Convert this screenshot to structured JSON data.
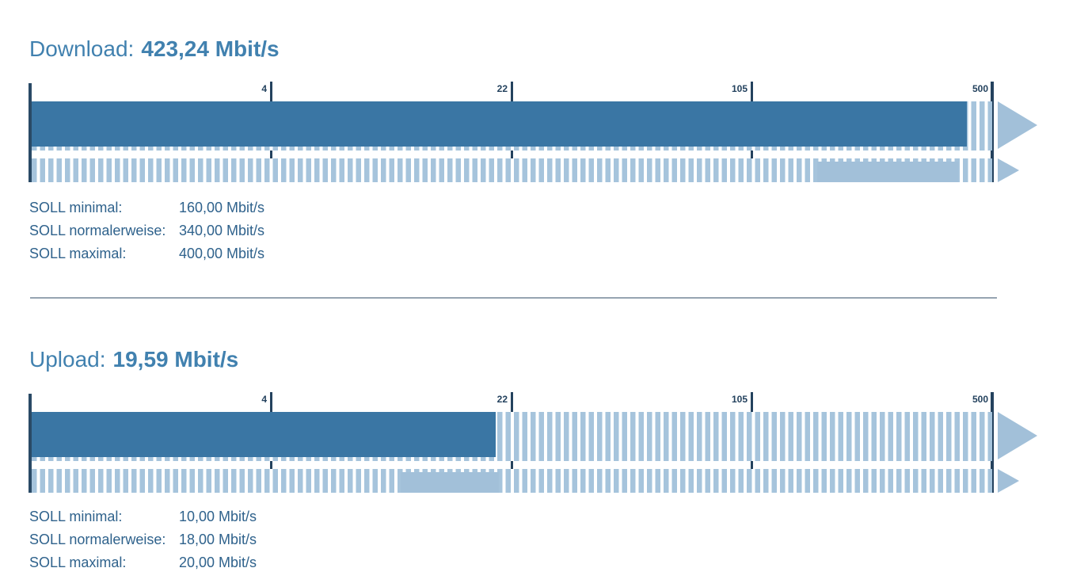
{
  "page": {
    "unit": "Mbit/s"
  },
  "colors": {
    "title_blue": "#4181af",
    "bar_dark": "#3a76a4",
    "bar_light": "#a2c0d9",
    "stripe": "#a6c4dc",
    "line_navy": "#24425e",
    "text_steel": "#2f628c",
    "divider_gray": "#96a4b1"
  },
  "charts": [
    {
      "name": "download",
      "title_label": "Download:",
      "title_value": "423,24 Mbit/s",
      "measured": 423.24,
      "scale_ticks": [
        4,
        22,
        105,
        500
      ],
      "soll_minimal": 160,
      "soll_normalerweise": 340,
      "soll_maximal": 400,
      "soll_rows": [
        {
          "label": "SOLL minimal:",
          "value": "160,00 Mbit/s"
        },
        {
          "label": "SOLL normalerweise:",
          "value": "340,00 Mbit/s"
        },
        {
          "label": "SOLL maximal:",
          "value": "400,00 Mbit/s"
        }
      ]
    },
    {
      "name": "upload",
      "title_label": "Upload:",
      "title_value": "19,59 Mbit/s",
      "measured": 19.59,
      "scale_ticks": [
        4,
        22,
        105,
        500
      ],
      "soll_minimal": 10,
      "soll_normalerweise": 18,
      "soll_maximal": 20,
      "soll_rows": [
        {
          "label": "SOLL minimal:",
          "value": "10,00 Mbit/s"
        },
        {
          "label": "SOLL normalerweise:",
          "value": "18,00 Mbit/s"
        },
        {
          "label": "SOLL maximal:",
          "value": "20,00 Mbit/s"
        }
      ]
    }
  ],
  "chart_data": [
    {
      "type": "bar",
      "orientation": "horizontal",
      "title": "Download: 423,24 Mbit/s",
      "xlabel": "Mbit/s",
      "axis_scale": "segmented-log",
      "axis_ticks": [
        4,
        22,
        105,
        500
      ],
      "xlim": [
        0,
        500
      ],
      "grid": false,
      "legend": "none",
      "series": [
        {
          "name": "measured",
          "values": [
            423.24
          ]
        },
        {
          "name": "soll_range",
          "values": [
            [
              160,
              400
            ]
          ]
        }
      ],
      "annotations": {
        "soll_minimal": 160.0,
        "soll_normalerweise": 340.0,
        "soll_maximal": 400.0
      }
    },
    {
      "type": "bar",
      "orientation": "horizontal",
      "title": "Upload: 19,59 Mbit/s",
      "xlabel": "Mbit/s",
      "axis_scale": "segmented-log",
      "axis_ticks": [
        4,
        22,
        105,
        500
      ],
      "xlim": [
        0,
        500
      ],
      "grid": false,
      "legend": "none",
      "series": [
        {
          "name": "measured",
          "values": [
            19.59
          ]
        },
        {
          "name": "soll_range",
          "values": [
            [
              10,
              20
            ]
          ]
        }
      ],
      "annotations": {
        "soll_minimal": 10.0,
        "soll_normalerweise": 18.0,
        "soll_maximal": 20.0
      }
    }
  ]
}
